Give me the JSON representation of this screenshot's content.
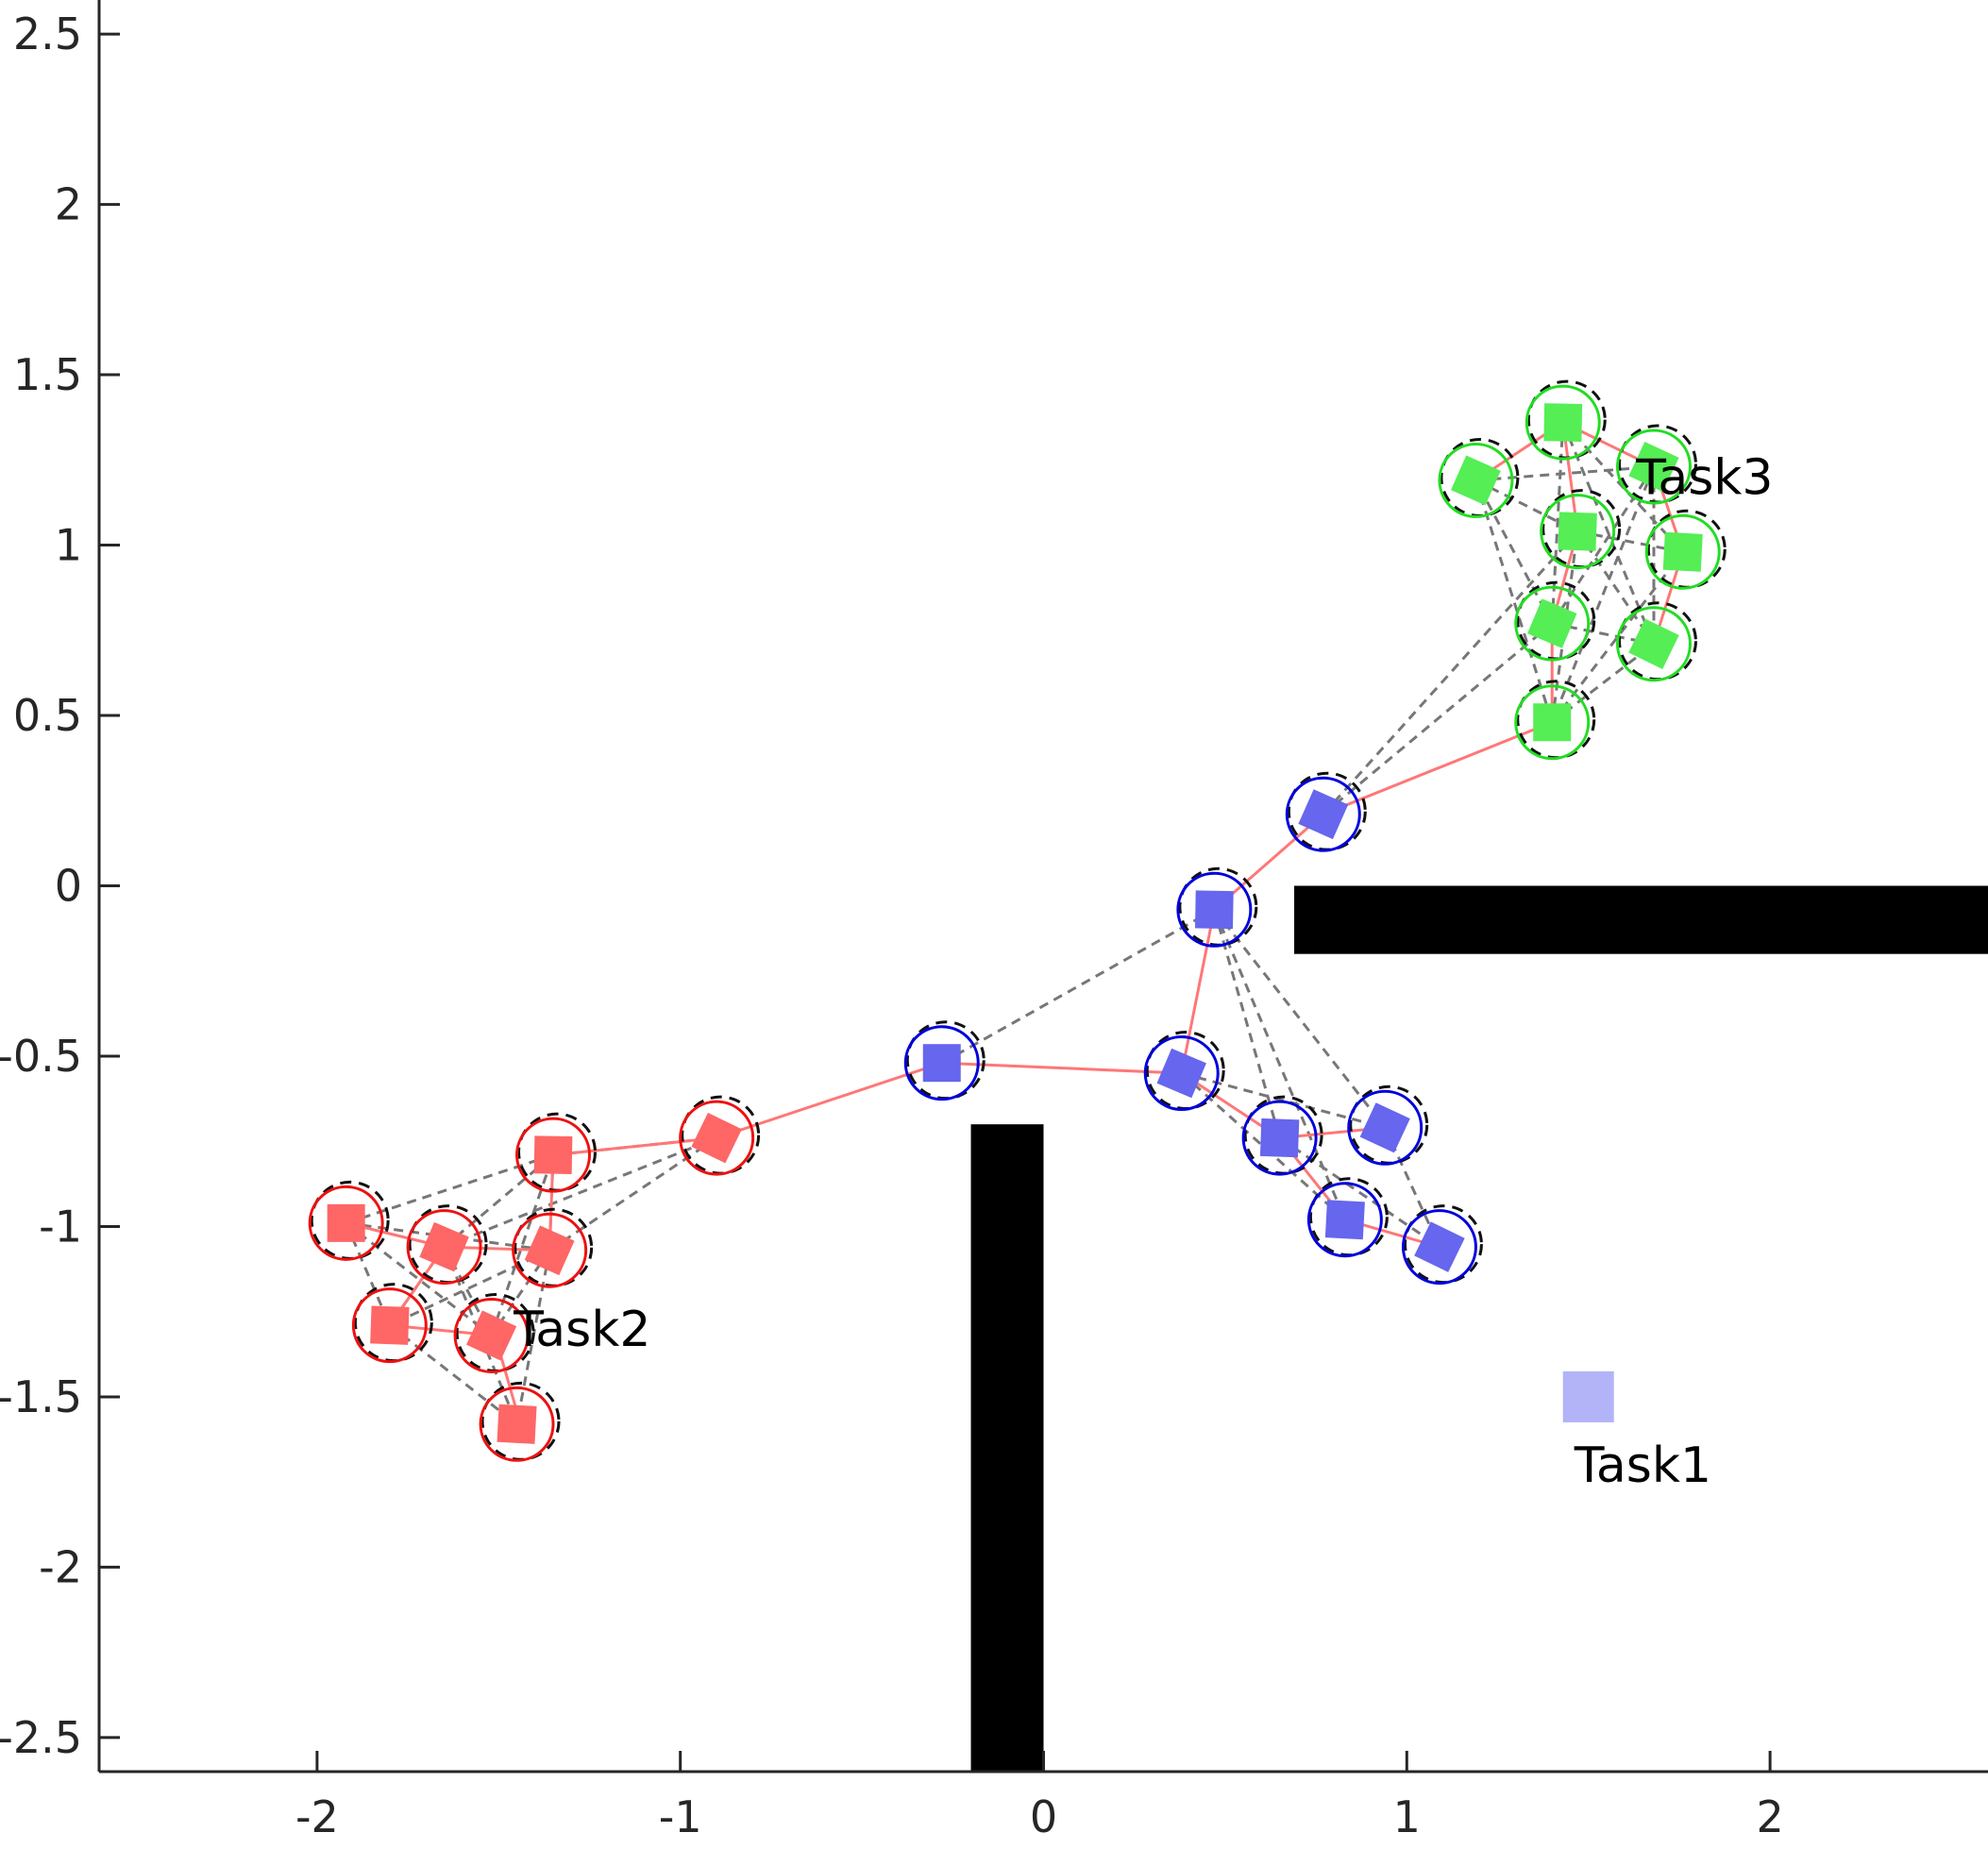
{
  "chart_data": {
    "type": "scatter",
    "title": "",
    "xlabel": "",
    "ylabel": "",
    "xlim": [
      -2.6,
      2.6
    ],
    "ylim": [
      -2.6,
      2.6
    ],
    "x_ticks": [
      -2,
      -1,
      0,
      1,
      2
    ],
    "x_tick_labels": [
      "-2",
      "-1",
      "0",
      "1",
      "2"
    ],
    "y_ticks": [
      2.5,
      2,
      1.5,
      1,
      0.5,
      0,
      -0.5,
      -1,
      -1.5,
      -2,
      -2.5
    ],
    "y_tick_labels": [
      "2.5",
      "2",
      "1.5",
      "1",
      "0.5",
      "0",
      "-0.5",
      "-1",
      "-1.5",
      "-2",
      "-2.5"
    ],
    "grid": false,
    "obstacles": [
      {
        "name": "vertical-wall",
        "x0": -0.2,
        "x1": 0.0,
        "y0": -2.6,
        "y1": -0.7
      },
      {
        "name": "horizontal-wall",
        "x0": 0.69,
        "x1": 2.6,
        "y0": -0.2,
        "y1": 0.0
      }
    ],
    "task_labels": [
      {
        "text": "Task1",
        "x": 1.65,
        "y": -1.75
      },
      {
        "text": "Task2",
        "x": -1.27,
        "y": -1.35
      },
      {
        "text": "Task3",
        "x": 1.82,
        "y": 1.15
      }
    ],
    "task_targets": [
      {
        "name": "Task1",
        "x": 1.5,
        "y": -1.5,
        "color": "#b3b3f8"
      }
    ],
    "series": [
      {
        "name": "Task2",
        "color": "#ff6666",
        "ring_color": "#ee1111",
        "points": [
          [
            -1.92,
            -0.99
          ],
          [
            -1.65,
            -1.06
          ],
          [
            -1.35,
            -0.79
          ],
          [
            -1.36,
            -1.07
          ],
          [
            -1.8,
            -1.29
          ],
          [
            -1.52,
            -1.32
          ],
          [
            -1.45,
            -1.58
          ],
          [
            -0.9,
            -0.74
          ]
        ]
      },
      {
        "name": "Task1",
        "color": "#6666ee",
        "ring_color": "#0000dd",
        "points": [
          [
            -0.28,
            -0.52
          ],
          [
            0.38,
            -0.55
          ],
          [
            0.47,
            -0.07
          ],
          [
            0.77,
            0.21
          ],
          [
            0.65,
            -0.74
          ],
          [
            0.94,
            -0.71
          ],
          [
            0.83,
            -0.98
          ],
          [
            1.09,
            -1.06
          ]
        ]
      },
      {
        "name": "Task3",
        "color": "#55ee55",
        "ring_color": "#22dd22",
        "points": [
          [
            1.4,
            0.48
          ],
          [
            1.4,
            0.77
          ],
          [
            1.43,
            1.36
          ],
          [
            1.19,
            1.19
          ],
          [
            1.47,
            1.04
          ],
          [
            1.68,
            1.23
          ],
          [
            1.76,
            0.98
          ],
          [
            1.68,
            0.71
          ]
        ]
      }
    ],
    "paths": [
      {
        "color": "#ff7777",
        "points": [
          [
            -1.44,
            -1.58
          ],
          [
            -1.51,
            -1.32
          ],
          [
            -1.8,
            -1.29
          ],
          [
            -1.65,
            -1.06
          ],
          [
            -1.92,
            -0.99
          ],
          [
            -1.65,
            -1.06
          ],
          [
            -1.36,
            -1.07
          ],
          [
            -1.35,
            -0.79
          ],
          [
            -0.9,
            -0.74
          ],
          [
            -0.28,
            -0.52
          ],
          [
            0.38,
            -0.55
          ],
          [
            0.47,
            -0.07
          ],
          [
            0.77,
            0.21
          ],
          [
            1.4,
            0.48
          ],
          [
            1.4,
            0.77
          ],
          [
            1.47,
            1.04
          ],
          [
            1.43,
            1.36
          ],
          [
            1.19,
            1.19
          ],
          [
            1.43,
            1.36
          ],
          [
            1.68,
            1.23
          ],
          [
            1.76,
            0.98
          ],
          [
            1.68,
            0.71
          ]
        ]
      },
      {
        "color": "#ff7777",
        "points": [
          [
            0.38,
            -0.55
          ],
          [
            0.65,
            -0.74
          ],
          [
            0.94,
            -0.71
          ]
        ]
      },
      {
        "color": "#ff7777",
        "points": [
          [
            0.65,
            -0.74
          ],
          [
            0.83,
            -0.98
          ],
          [
            1.09,
            -1.06
          ]
        ]
      }
    ],
    "dashed_links": [
      [
        [
          -1.92,
          -0.99
        ],
        [
          -1.35,
          -0.79
        ]
      ],
      [
        [
          -1.92,
          -0.99
        ],
        [
          -1.36,
          -1.07
        ]
      ],
      [
        [
          -1.92,
          -0.99
        ],
        [
          -1.8,
          -1.29
        ]
      ],
      [
        [
          -1.92,
          -0.99
        ],
        [
          -1.52,
          -1.32
        ]
      ],
      [
        [
          -1.65,
          -1.06
        ],
        [
          -1.35,
          -0.79
        ]
      ],
      [
        [
          -1.65,
          -1.06
        ],
        [
          -1.8,
          -1.29
        ]
      ],
      [
        [
          -1.65,
          -1.06
        ],
        [
          -1.52,
          -1.32
        ]
      ],
      [
        [
          -1.65,
          -1.06
        ],
        [
          -1.45,
          -1.58
        ]
      ],
      [
        [
          -1.36,
          -1.07
        ],
        [
          -1.8,
          -1.29
        ]
      ],
      [
        [
          -1.36,
          -1.07
        ],
        [
          -1.52,
          -1.32
        ]
      ],
      [
        [
          -1.36,
          -1.07
        ],
        [
          -1.45,
          -1.58
        ]
      ],
      [
        [
          -1.35,
          -0.79
        ],
        [
          -1.36,
          -1.07
        ]
      ],
      [
        [
          -1.8,
          -1.29
        ],
        [
          -1.45,
          -1.58
        ]
      ],
      [
        [
          -1.52,
          -1.32
        ],
        [
          -1.35,
          -0.79
        ]
      ],
      [
        [
          -1.65,
          -1.06
        ],
        [
          -0.9,
          -0.74
        ]
      ],
      [
        [
          -1.36,
          -1.07
        ],
        [
          -0.9,
          -0.74
        ]
      ],
      [
        [
          -1.35,
          -0.79
        ],
        [
          -0.9,
          -0.74
        ]
      ],
      [
        [
          -0.28,
          -0.52
        ],
        [
          0.47,
          -0.07
        ]
      ],
      [
        [
          0.47,
          -0.07
        ],
        [
          0.65,
          -0.74
        ]
      ],
      [
        [
          0.47,
          -0.07
        ],
        [
          0.94,
          -0.71
        ]
      ],
      [
        [
          0.47,
          -0.07
        ],
        [
          0.83,
          -0.98
        ]
      ],
      [
        [
          0.38,
          -0.55
        ],
        [
          0.94,
          -0.71
        ]
      ],
      [
        [
          0.38,
          -0.55
        ],
        [
          0.83,
          -0.98
        ]
      ],
      [
        [
          0.94,
          -0.71
        ],
        [
          1.09,
          -1.06
        ]
      ],
      [
        [
          0.65,
          -0.74
        ],
        [
          1.09,
          -1.06
        ]
      ],
      [
        [
          0.77,
          0.21
        ],
        [
          1.4,
          0.77
        ]
      ],
      [
        [
          0.77,
          0.21
        ],
        [
          1.47,
          1.04
        ]
      ],
      [
        [
          1.4,
          0.48
        ],
        [
          1.68,
          0.71
        ]
      ],
      [
        [
          1.4,
          0.48
        ],
        [
          1.76,
          0.98
        ]
      ],
      [
        [
          1.4,
          0.48
        ],
        [
          1.47,
          1.04
        ]
      ],
      [
        [
          1.4,
          0.77
        ],
        [
          1.68,
          1.23
        ]
      ],
      [
        [
          1.4,
          0.77
        ],
        [
          1.19,
          1.19
        ]
      ],
      [
        [
          1.4,
          0.77
        ],
        [
          1.68,
          0.71
        ]
      ],
      [
        [
          1.4,
          0.77
        ],
        [
          1.43,
          1.36
        ]
      ],
      [
        [
          1.19,
          1.19
        ],
        [
          1.47,
          1.04
        ]
      ],
      [
        [
          1.19,
          1.19
        ],
        [
          1.68,
          1.23
        ]
      ],
      [
        [
          1.19,
          1.19
        ],
        [
          1.4,
          0.48
        ]
      ],
      [
        [
          1.47,
          1.04
        ],
        [
          1.68,
          0.71
        ]
      ],
      [
        [
          1.47,
          1.04
        ],
        [
          1.76,
          0.98
        ]
      ],
      [
        [
          1.43,
          1.36
        ],
        [
          1.76,
          0.98
        ]
      ],
      [
        [
          1.43,
          1.36
        ],
        [
          1.68,
          0.71
        ]
      ],
      [
        [
          1.68,
          1.23
        ],
        [
          1.68,
          0.71
        ]
      ],
      [
        [
          1.68,
          1.23
        ],
        [
          1.4,
          0.48
        ]
      ]
    ]
  }
}
